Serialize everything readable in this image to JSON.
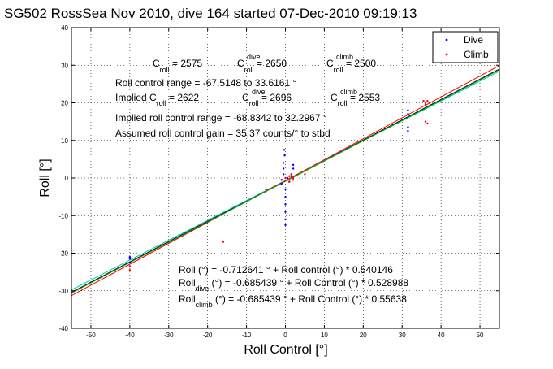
{
  "chart_data": {
    "type": "scatter",
    "title": "SG502 RossSea Nov 2010, dive 164 started 07-Dec-2010 09:19:13",
    "xlabel": "Roll Control [°]",
    "ylabel": "Roll [°]",
    "xlim": [
      -55,
      55
    ],
    "ylim": [
      -40,
      40
    ],
    "x_ticks": [
      "-50",
      "-40",
      "-30",
      "-20",
      "-10",
      "0",
      "10",
      "20",
      "30",
      "40",
      "50"
    ],
    "y_ticks": [
      "-40",
      "-30",
      "-20",
      "-10",
      "0",
      "10",
      "20",
      "30",
      "40"
    ],
    "grid": true,
    "legend_position": "top-right",
    "legend": [
      {
        "label": "Dive",
        "color": "#0000ff"
      },
      {
        "label": "Climb",
        "color": "#ff0000"
      }
    ],
    "series": [
      {
        "name": "Dive",
        "color": "#0000ff",
        "points": [
          [
            -40,
            -21.5
          ],
          [
            -40,
            -22.5
          ],
          [
            -40,
            -21
          ],
          [
            -5,
            -3
          ],
          [
            -1,
            -1.5
          ],
          [
            -1,
            -0.5
          ],
          [
            -0.5,
            1
          ],
          [
            -0.5,
            2.5
          ],
          [
            -0.5,
            4
          ],
          [
            -0.2,
            6
          ],
          [
            -0.3,
            7.5
          ],
          [
            0,
            -3
          ],
          [
            0,
            -5
          ],
          [
            0,
            -7
          ],
          [
            0,
            -9
          ],
          [
            0,
            -11
          ],
          [
            0,
            -12.5
          ],
          [
            0.5,
            0
          ],
          [
            1,
            -1
          ],
          [
            1.5,
            0.5
          ],
          [
            2,
            2.5
          ],
          [
            2,
            3.5
          ],
          [
            31.5,
            17
          ],
          [
            31.5,
            18
          ],
          [
            31.5,
            12.5
          ],
          [
            31.5,
            13.5
          ]
        ]
      },
      {
        "name": "Climb",
        "color": "#ff0000",
        "points": [
          [
            -40,
            -23.5
          ],
          [
            -40,
            -24.5
          ],
          [
            -16,
            -17
          ],
          [
            0,
            0
          ],
          [
            0.5,
            -0.5
          ],
          [
            1,
            0.5
          ],
          [
            1,
            -1
          ],
          [
            1.5,
            1
          ],
          [
            2,
            0
          ],
          [
            2,
            -0.5
          ],
          [
            5,
            1
          ],
          [
            35.5,
            20.5
          ],
          [
            36,
            20
          ],
          [
            36.5,
            20.5
          ],
          [
            36,
            19.5
          ],
          [
            37,
            20
          ],
          [
            36,
            15
          ],
          [
            36.5,
            14.5
          ]
        ]
      }
    ],
    "fit_lines": [
      {
        "name": "All",
        "color": "#000000",
        "intercept": -0.712641,
        "slope": 0.540146
      },
      {
        "name": "Dive",
        "color": "#00bfbf",
        "intercept": -0.685439,
        "slope": 0.528988
      },
      {
        "name": "Climb",
        "color": "#ff0000",
        "intercept": -0.685439,
        "slope": 0.55638
      },
      {
        "name": "",
        "color": "#00aa00",
        "intercept": -0.9,
        "slope": 0.54
      }
    ],
    "annotations": {
      "c_roll_row": [
        {
          "main": "C",
          "sub": "roll",
          "sup": "",
          "rest": " = 2575"
        },
        {
          "main": "C",
          "sub": "roll",
          "sup": "dive",
          "rest": " = 2650"
        },
        {
          "main": "C",
          "sub": "roll",
          "sup": "climb",
          "rest": " = 2500"
        }
      ],
      "roll_control_range": "Roll control range = -67.5148 to 33.6161 °",
      "implied_c_row": [
        {
          "main": "Implied C",
          "sub": "roll",
          "sup": "",
          "rest": " = 2622"
        },
        {
          "main": "C",
          "sub": "roll",
          "sup": "dive",
          "rest": " = 2696"
        },
        {
          "main": "C",
          "sub": "roll",
          "sup": "climb",
          "rest": " = 2553"
        }
      ],
      "implied_range": "Implied roll control range = -68.8342 to 32.2967 °",
      "gain": "Assumed roll control gain = 35.37 counts/° to stbd",
      "fit_all": "Roll (°) = -0.712641 ° + Roll control (°) * 0.540146",
      "fit_dive_main": "Roll",
      "fit_dive_sub": "dive",
      "fit_dive_rest": " (°) = -0.685439 ° + Roll Control (°) * 0.528988",
      "fit_climb_main": "Roll",
      "fit_climb_sub": "climb",
      "fit_climb_rest": " (°) = -0.685439 ° + Roll Control (°) * 0.55638"
    }
  }
}
